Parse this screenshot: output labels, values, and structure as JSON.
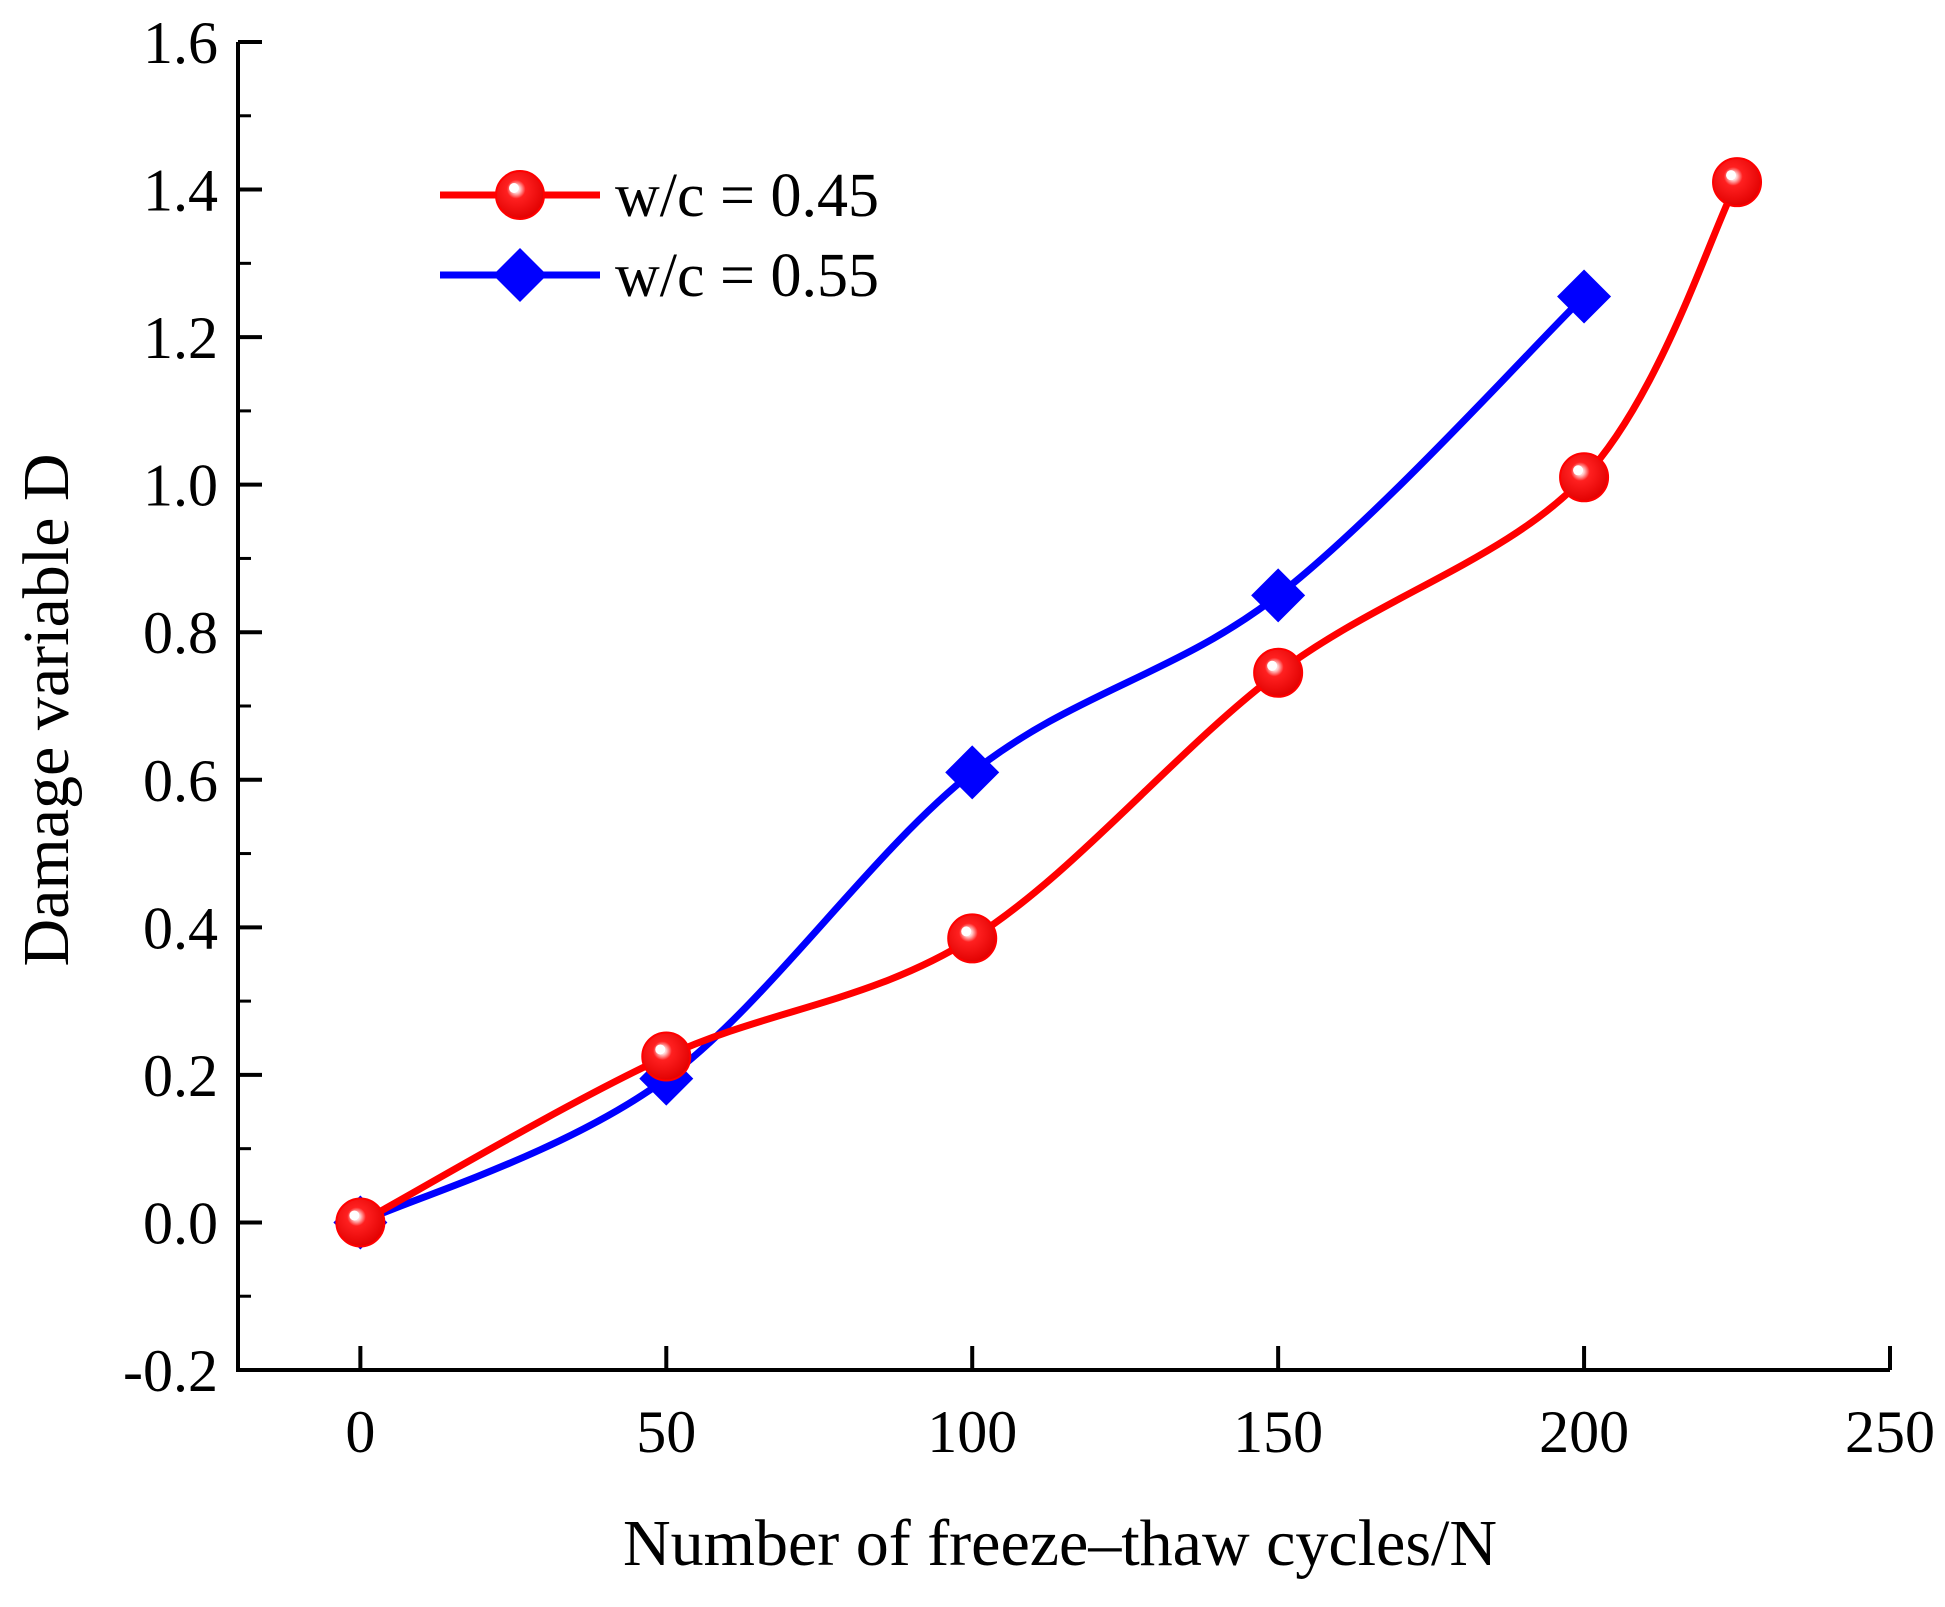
{
  "chart_data": {
    "type": "line",
    "title": "",
    "xlabel": "Number of freeze–thaw cycles/N",
    "ylabel": "Damage variable D",
    "xlim": [
      -20,
      250
    ],
    "ylim": [
      -0.2,
      1.6
    ],
    "x_ticks": [
      0,
      50,
      100,
      150,
      200,
      250
    ],
    "x_tick_labels": [
      "0",
      "50",
      "100",
      "150",
      "200",
      "250"
    ],
    "y_ticks": [
      -0.2,
      0.0,
      0.2,
      0.4,
      0.6,
      0.8,
      1.0,
      1.2,
      1.4,
      1.6
    ],
    "y_tick_labels": [
      "-0.2",
      "0.0",
      "0.2",
      "0.4",
      "0.6",
      "0.8",
      "1.0",
      "1.2",
      "1.4",
      "1.6"
    ],
    "grid": false,
    "legend_position": "top-left",
    "series": [
      {
        "name": "w/c = 0.45",
        "color": "#ff0000",
        "marker": "sphere",
        "x": [
          0,
          50,
          100,
          150,
          200,
          225
        ],
        "y": [
          0.0,
          0.225,
          0.385,
          0.745,
          1.01,
          1.41
        ]
      },
      {
        "name": "w/c = 0.55",
        "color": "#0000ff",
        "marker": "diamond",
        "x": [
          0,
          50,
          100,
          150,
          200
        ],
        "y": [
          0.0,
          0.195,
          0.61,
          0.85,
          1.255
        ]
      }
    ]
  }
}
